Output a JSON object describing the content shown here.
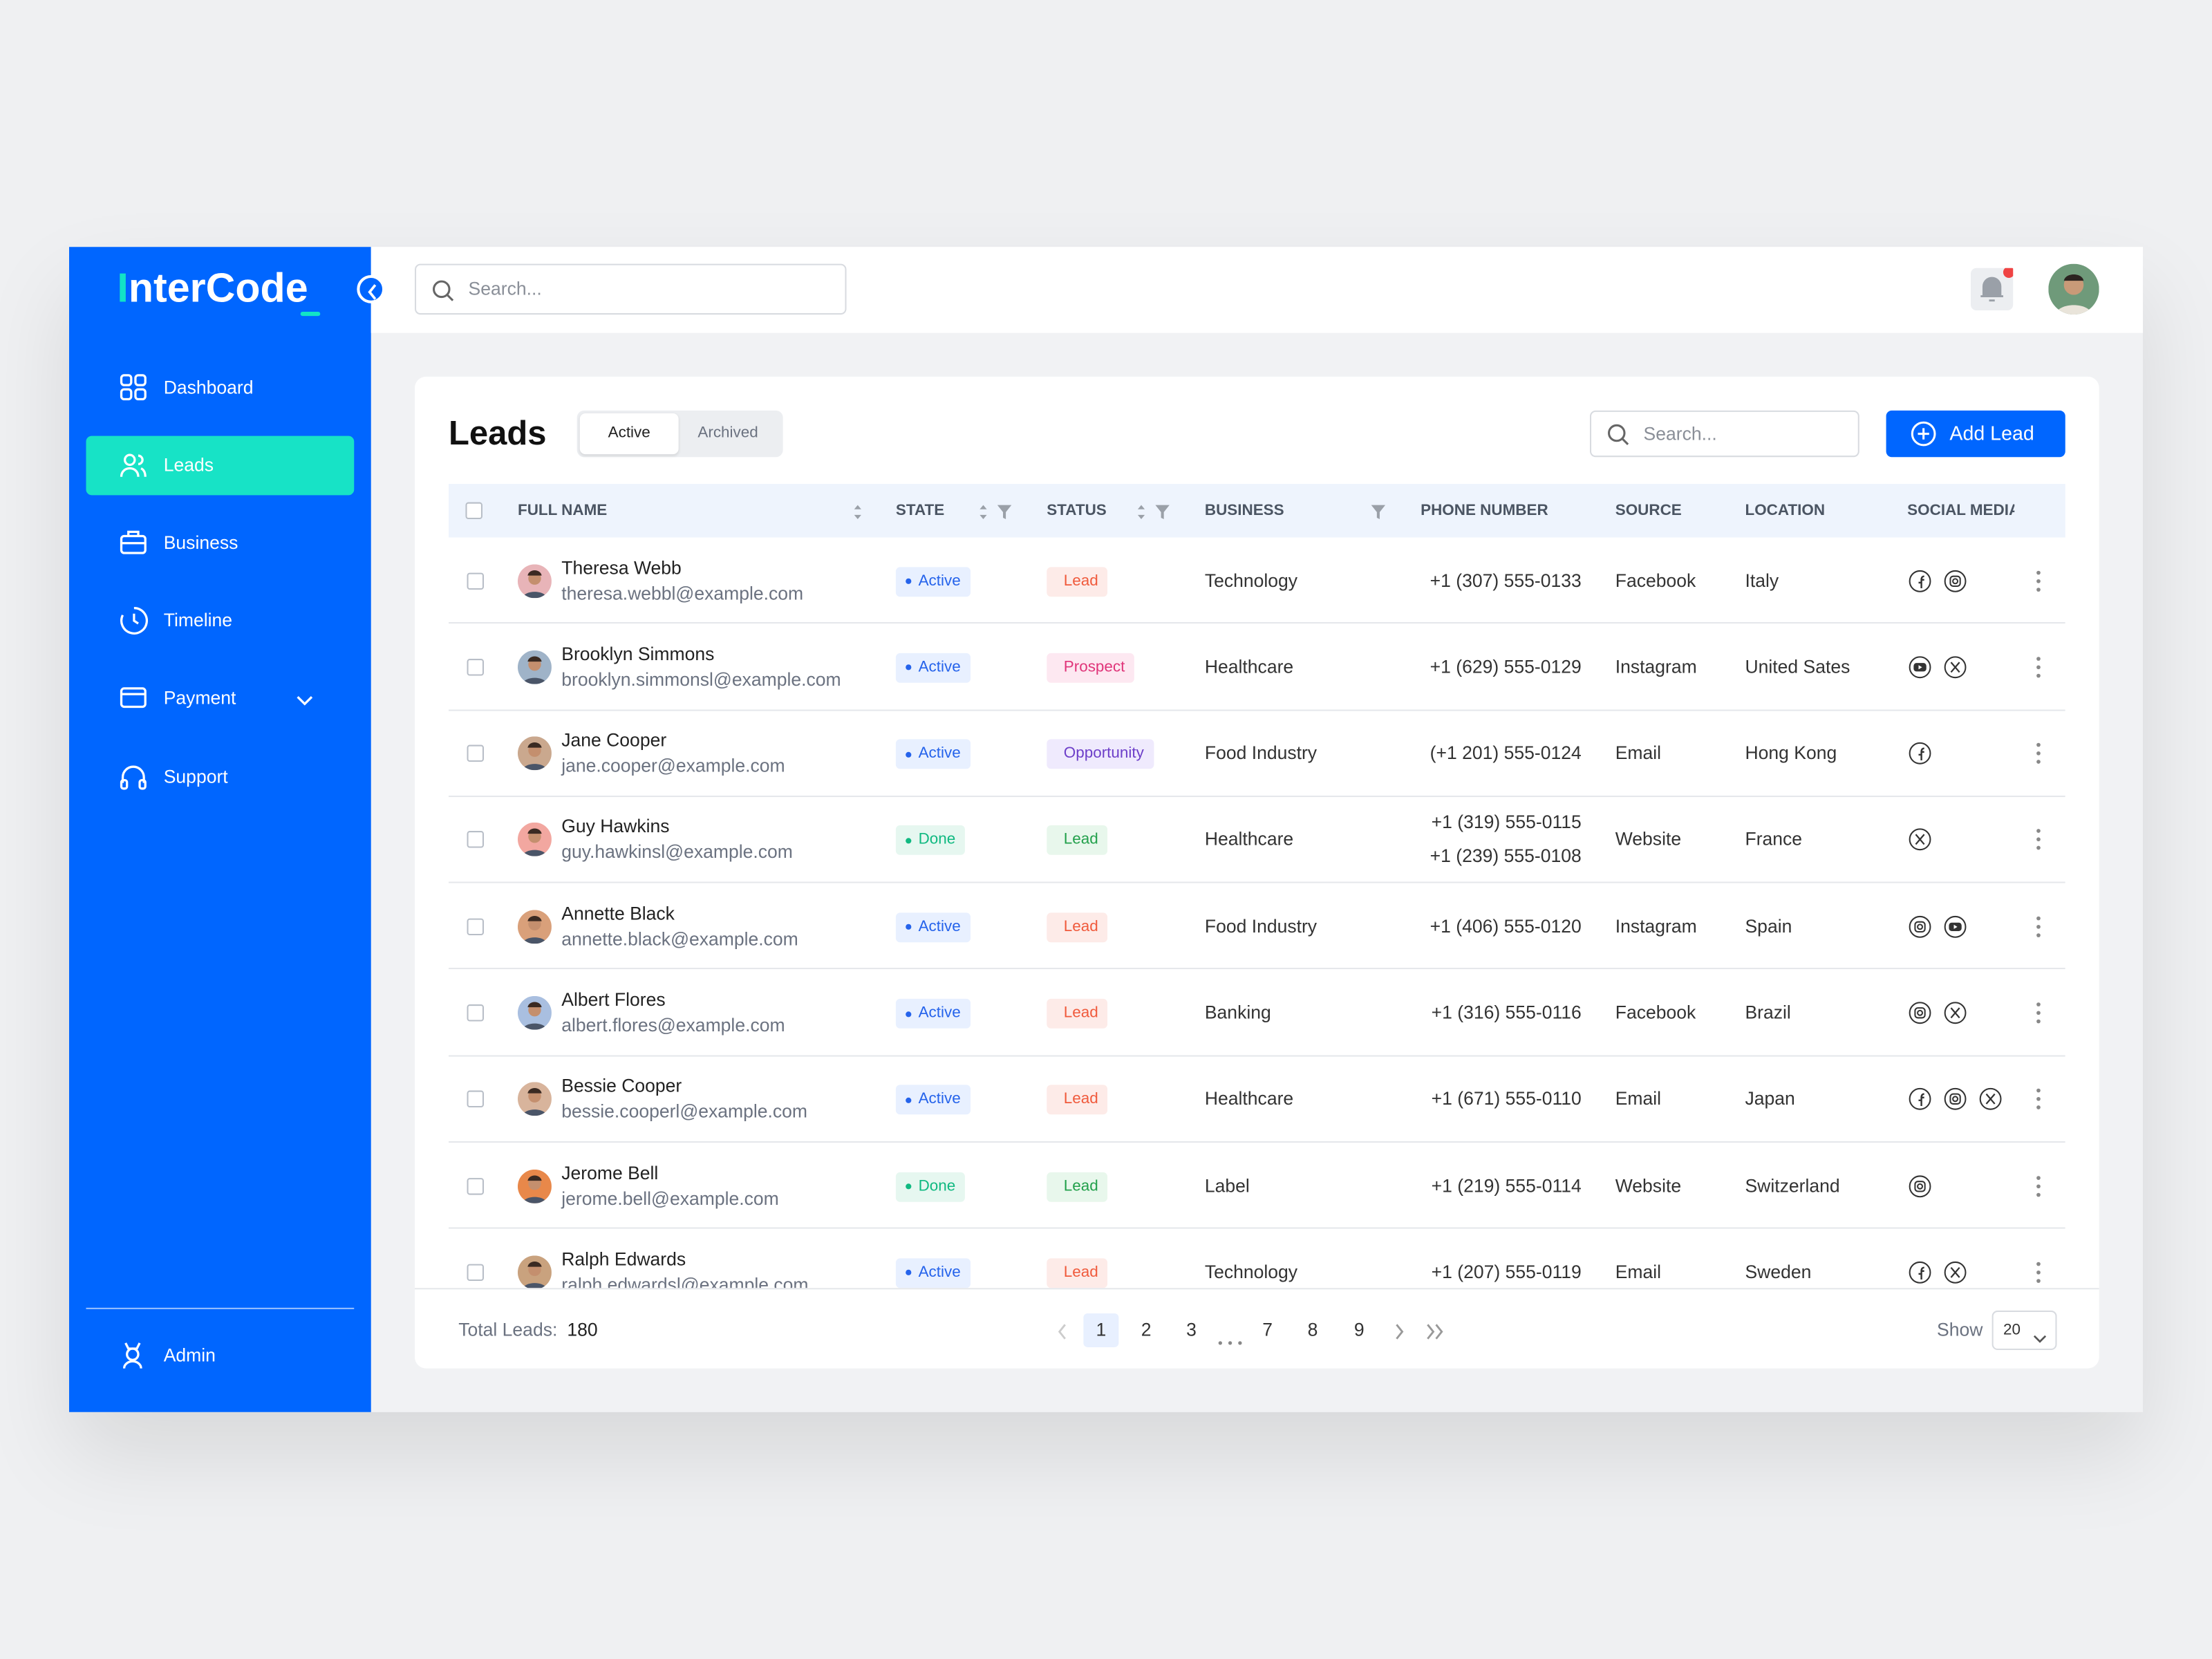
{
  "sidebar": {
    "logo": "InterCode",
    "nav": [
      "Dashboard",
      "Leads",
      "Business",
      "Timeline",
      "Payment",
      "Support"
    ],
    "user": "Admin"
  },
  "topbar": {
    "search_placeholder": "Search..."
  },
  "leads": {
    "title": "Leads",
    "tabs": [
      "Active",
      "Archived"
    ],
    "search_placeholder": "Search...",
    "add_button": "Add Lead",
    "columns": [
      "FULL NAME",
      "STATE",
      "STATUS",
      "BUSINESS",
      "PHONE NUMBER",
      "SOURCE",
      "LOCATION",
      "SOCIAL MEDIA"
    ],
    "rows": [
      {
        "name": "Theresa Webb",
        "email": "theresa.webbl@example.com",
        "state": "Active",
        "status": "Lead",
        "business": "Technology",
        "phones": [
          "+1 (307) 555-0133"
        ],
        "source": "Facebook",
        "location": "Italy"
      },
      {
        "name": "Brooklyn Simmons",
        "email": "brooklyn.simmonsl@example.com",
        "state": "Active",
        "status": "Prospect",
        "business": "Healthcare",
        "phones": [
          "+1 (629) 555-0129"
        ],
        "source": "Instagram",
        "location": "United Sates"
      },
      {
        "name": "Jane Cooper",
        "email": "jane.cooper@example.com",
        "state": "Active",
        "status": "Opportunity",
        "business": "Food Industry",
        "phones": [
          "(+1 201) 555-0124"
        ],
        "source": "Email",
        "location": "Hong Kong"
      },
      {
        "name": "Guy Hawkins",
        "email": "guy.hawkinsl@example.com",
        "state": "Done",
        "status": "Lead",
        "business": "Healthcare",
        "phones": [
          "+1 (319) 555-0115",
          "+1 (239) 555-0108"
        ],
        "source": "Website",
        "location": "France"
      },
      {
        "name": "Annette Black",
        "email": "annette.black@example.com",
        "state": "Active",
        "status": "Lead",
        "business": "Food Industry",
        "phones": [
          "+1 (406) 555-0120"
        ],
        "source": "Instagram",
        "location": "Spain"
      },
      {
        "name": "Albert Flores",
        "email": "albert.flores@example.com",
        "state": "Active",
        "status": "Lead",
        "business": "Banking",
        "phones": [
          "+1 (316) 555-0116"
        ],
        "source": "Facebook",
        "location": "Brazil"
      },
      {
        "name": "Bessie Cooper",
        "email": "bessie.cooperl@example.com",
        "state": "Active",
        "status": "Lead",
        "business": "Healthcare",
        "phones": [
          "+1 (671) 555-0110"
        ],
        "source": "Email",
        "location": "Japan"
      },
      {
        "name": "Jerome Bell",
        "email": "jerome.bell@example.com",
        "state": "Done",
        "status": "Lead",
        "business": "Label",
        "phones": [
          "+1 (219) 555-0114"
        ],
        "source": "Website",
        "location": "Switzerland"
      },
      {
        "name": "Ralph Edwards",
        "email": "ralph.edwardsl@example.com",
        "state": "Active",
        "status": "Lead",
        "business": "Technology",
        "phones": [
          "+1 (207) 555-0119"
        ],
        "source": "Email",
        "location": "Sweden"
      }
    ],
    "footer": {
      "total_label": "Total Leads:",
      "total": 180,
      "pages": [
        1,
        2,
        3,
        7,
        8,
        9
      ],
      "show_label": "Show",
      "page_size": 20
    }
  }
}
